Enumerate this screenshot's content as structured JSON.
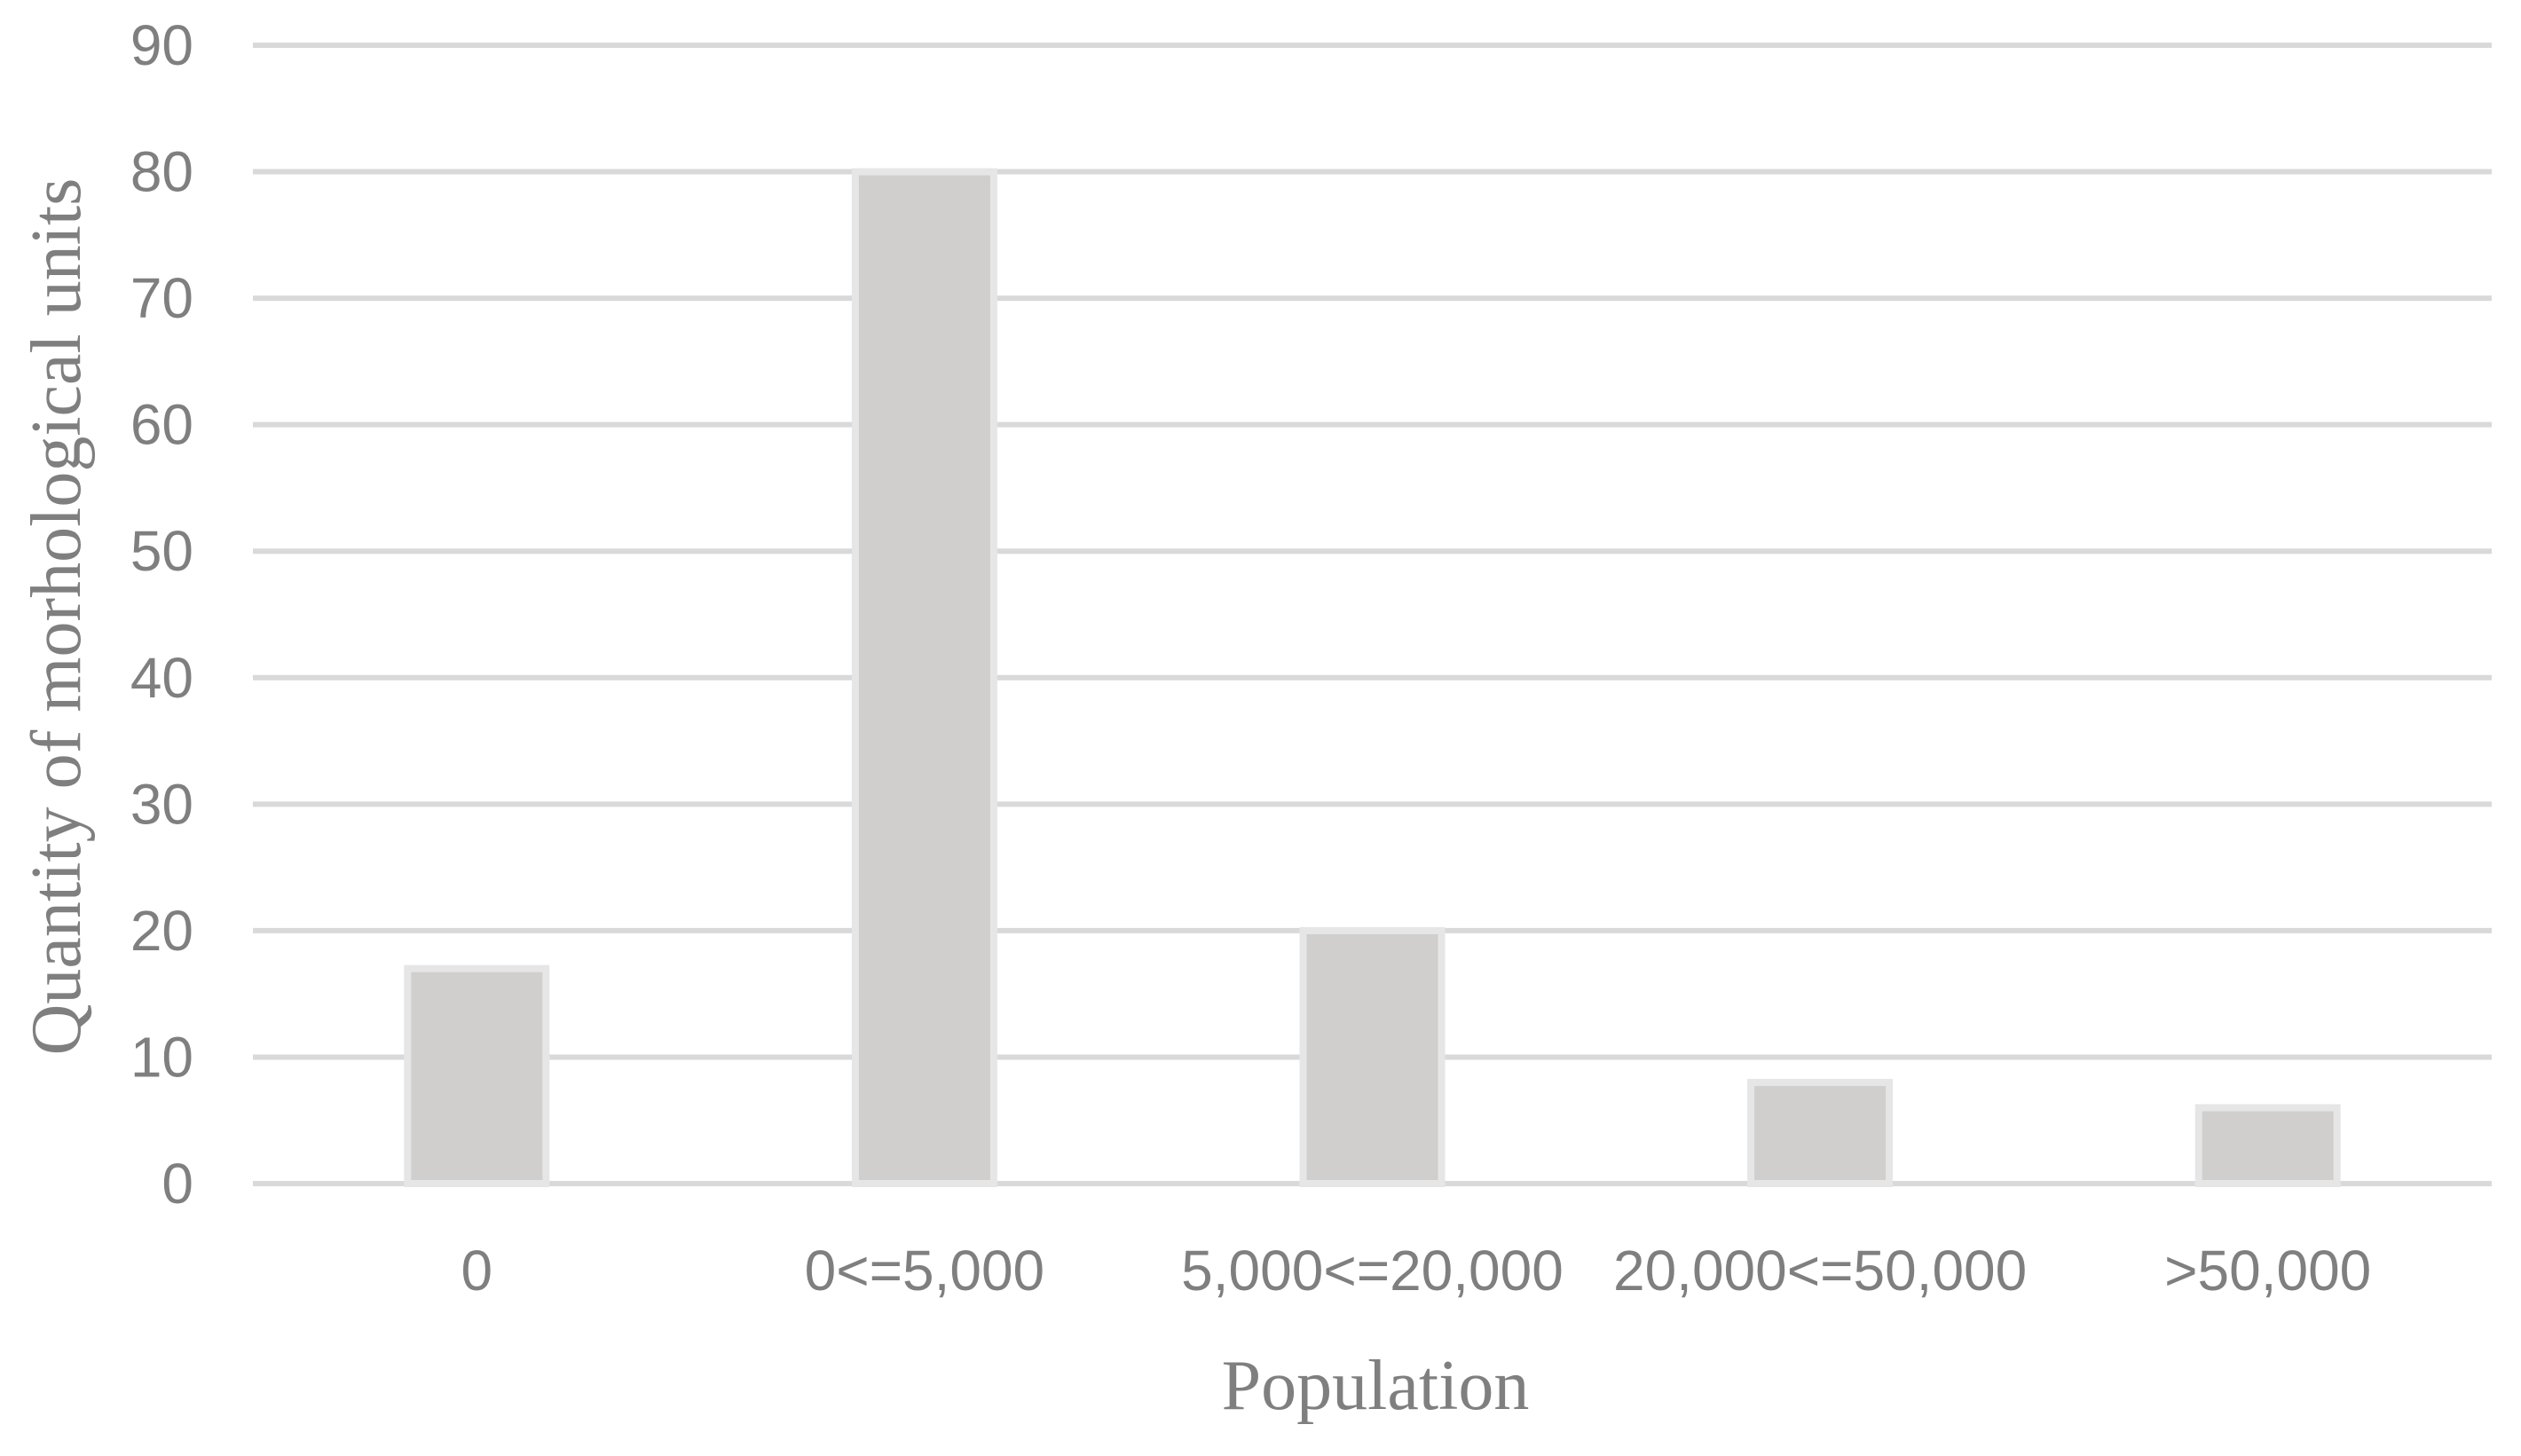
{
  "chart_data": {
    "type": "bar",
    "title": "",
    "xlabel": "Population",
    "ylabel": "Quantity of morhological units",
    "categories": [
      "0",
      "0<=5,000",
      "5,000<=20,000",
      "20,000<=50,000",
      ">50,000"
    ],
    "values": [
      17,
      80,
      20,
      8,
      6
    ],
    "ylim": [
      0,
      90
    ],
    "yticks": [
      0,
      10,
      20,
      30,
      40,
      50,
      60,
      70,
      80,
      90
    ],
    "grid": true,
    "legend": "none",
    "colors": {
      "bar_fill": "#d0cfcd",
      "bar_outline": "#e6e6e6",
      "gridline": "#d9d9d9",
      "text": "#7f7f7f"
    }
  }
}
